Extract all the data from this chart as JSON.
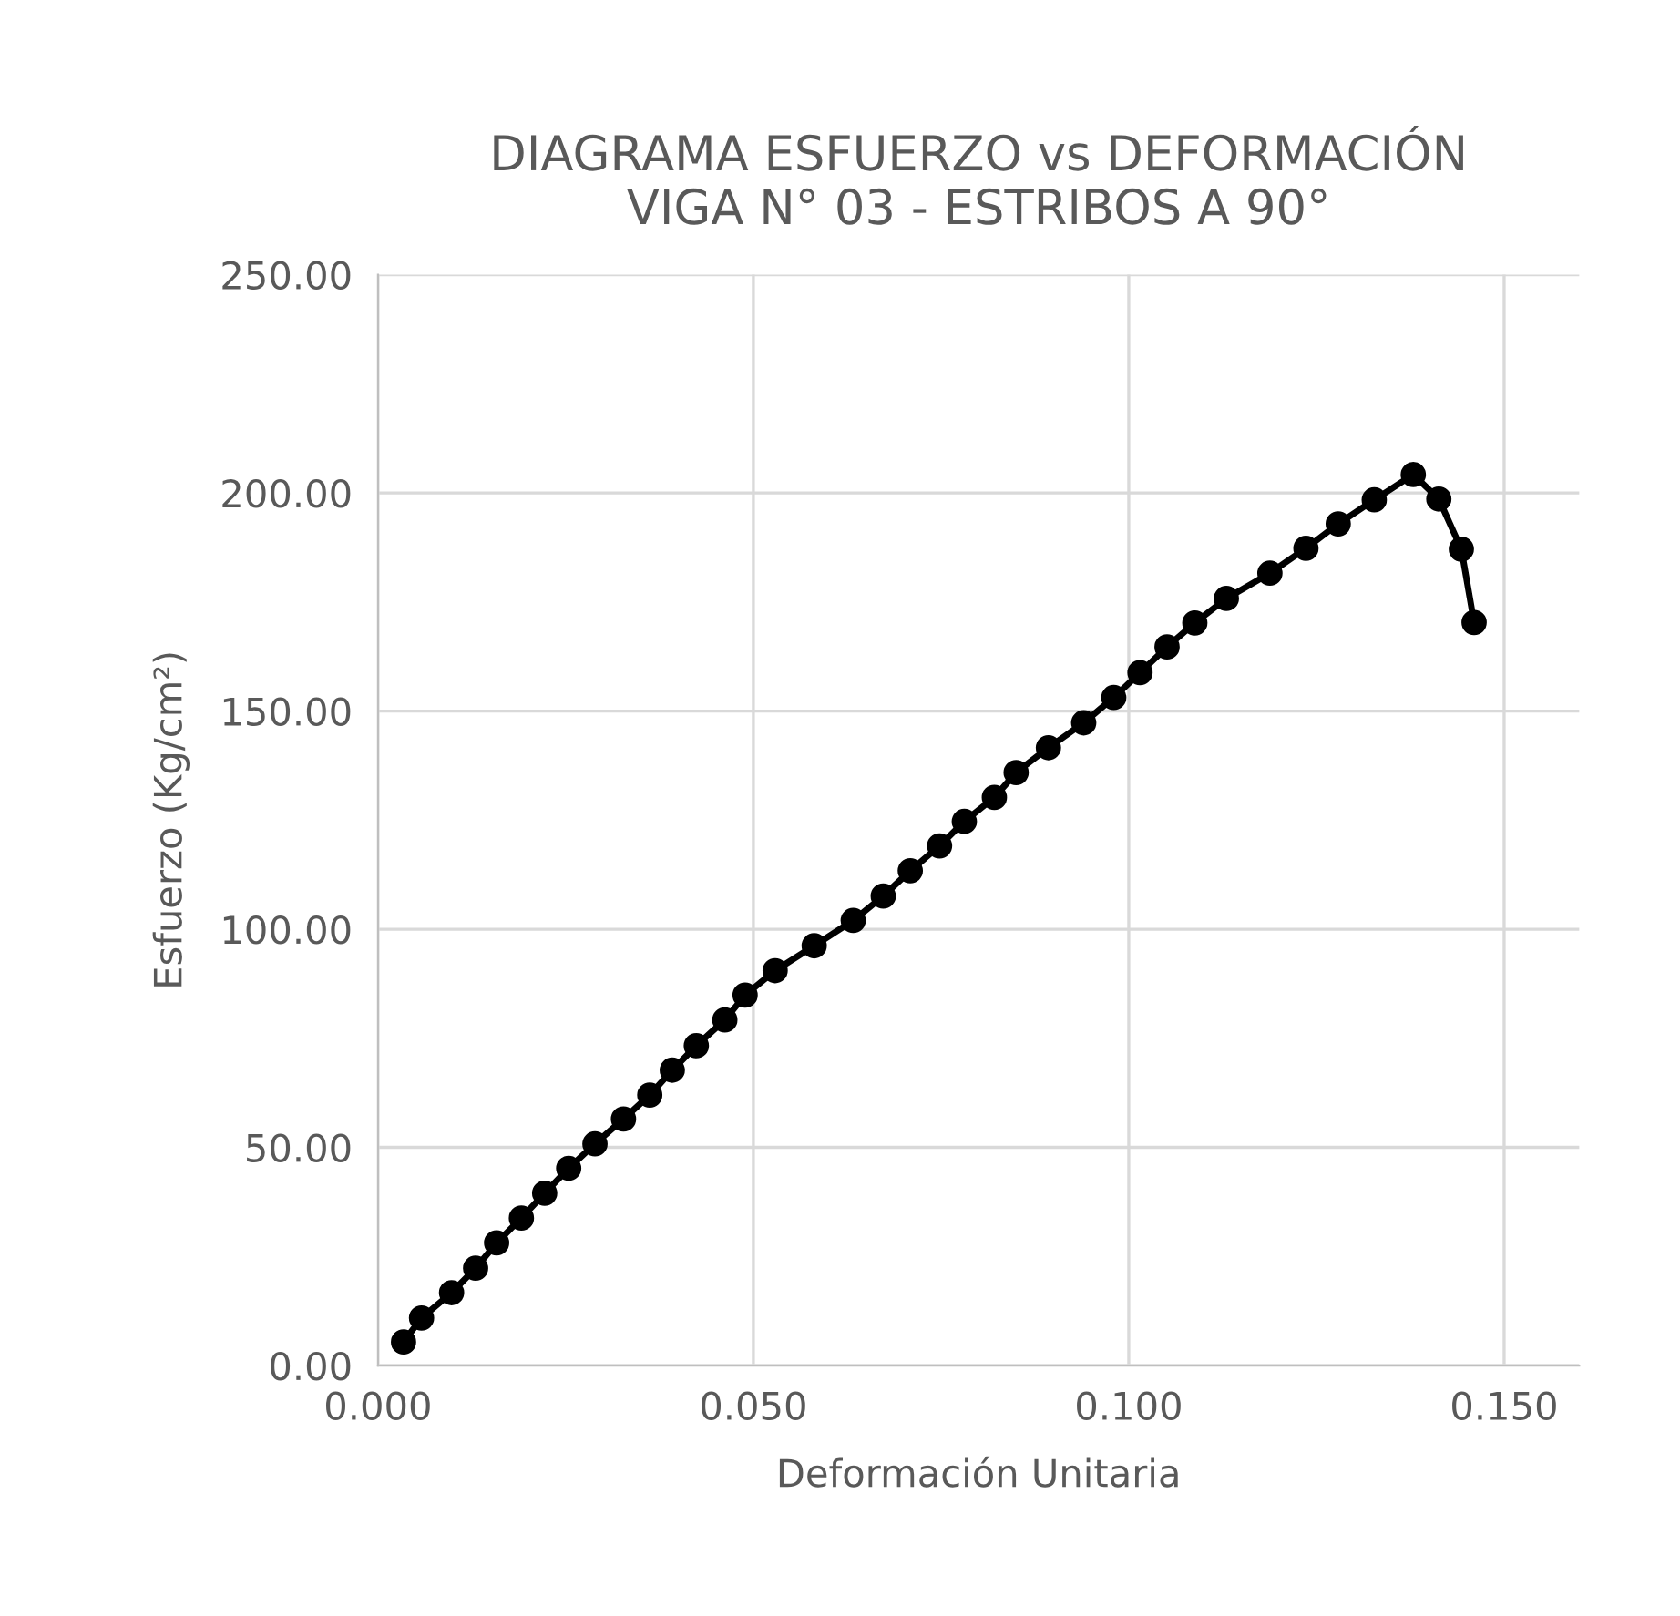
{
  "chart_data": {
    "type": "line",
    "title": "DIAGRAMA ESFUERZO vs DEFORMACIÓN\nVIGA N° 03 - ESTRIBOS A 90°",
    "xlabel": "Deformación Unitaria",
    "ylabel": "Esfuerzo (Kg/cm²)",
    "x": [
      0.0034,
      0.0058,
      0.0098,
      0.013,
      0.0158,
      0.0191,
      0.0222,
      0.0254,
      0.0289,
      0.0327,
      0.0362,
      0.0392,
      0.0424,
      0.0462,
      0.0489,
      0.0529,
      0.0581,
      0.0633,
      0.0673,
      0.0709,
      0.0748,
      0.0781,
      0.0821,
      0.085,
      0.0893,
      0.094,
      0.098,
      0.1015,
      0.1051,
      0.1088,
      0.113,
      0.1188,
      0.1236,
      0.1279,
      0.1327,
      0.1379,
      0.1413,
      0.1443,
      0.146
    ],
    "series": [
      {
        "color": "#000000",
        "values": [
          5.4,
          10.9,
          16.7,
          22.3,
          28.1,
          33.8,
          39.5,
          45.2,
          50.8,
          56.5,
          62.0,
          67.7,
          73.3,
          79.2,
          84.9,
          90.5,
          96.2,
          102.0,
          107.6,
          113.4,
          119.1,
          124.7,
          130.2,
          135.9,
          141.6,
          147.3,
          153.1,
          158.8,
          164.7,
          170.2,
          175.8,
          181.6,
          187.3,
          192.9,
          198.4,
          204.2,
          198.6,
          187.1,
          170.3
        ]
      }
    ],
    "xlim": [
      0,
      0.16
    ],
    "ylim": [
      0,
      250
    ],
    "xticks": [
      {
        "value": 0,
        "label": "0.000"
      },
      {
        "value": 0.05,
        "label": "0.050"
      },
      {
        "value": 0.1,
        "label": "0.100"
      },
      {
        "value": 0.15,
        "label": "0.150"
      }
    ],
    "yticks": [
      {
        "value": 0,
        "label": "0.00"
      },
      {
        "value": 50,
        "label": "50.00"
      },
      {
        "value": 100,
        "label": "100.00"
      },
      {
        "value": 150,
        "label": "150.00"
      },
      {
        "value": 200,
        "label": "200.00"
      },
      {
        "value": 250,
        "label": "250.00"
      }
    ],
    "grid": true,
    "marker": "circle",
    "line_style": "solid"
  }
}
